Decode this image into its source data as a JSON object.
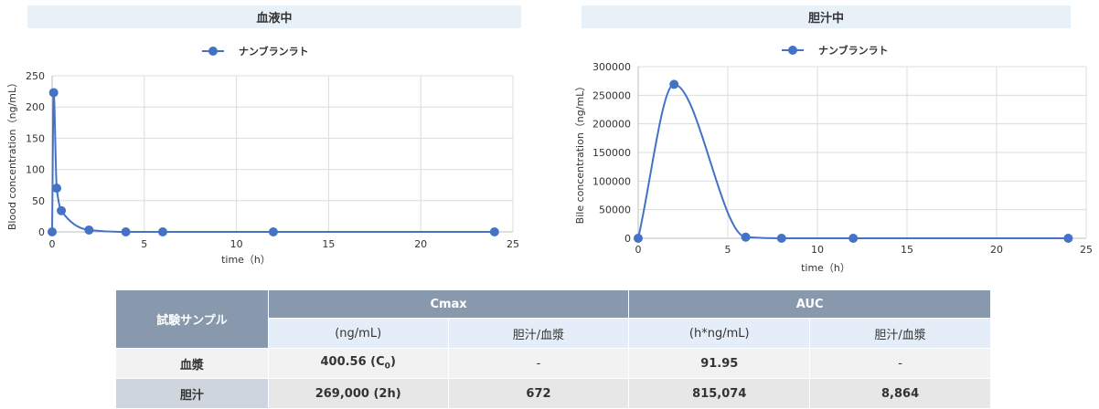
{
  "colors": {
    "series": "#4472c4",
    "panel_title_bg": "#e8f0f8",
    "table_header_bg": "#8898ad"
  },
  "chart_data": [
    {
      "type": "line",
      "title": "血液中",
      "xlabel": "time（h）",
      "ylabel": "Blood concentration（ng/mL）",
      "xlim": [
        0,
        25
      ],
      "ylim": [
        0,
        250
      ],
      "xticks": [
        0,
        5,
        10,
        15,
        20,
        25
      ],
      "yticks": [
        0,
        50,
        100,
        150,
        200,
        250
      ],
      "legend": "top-center",
      "grid": true,
      "series": [
        {
          "name": "ナンブランラト",
          "x": [
            0,
            0.083,
            0.25,
            0.5,
            2,
            4,
            6,
            12,
            24
          ],
          "y": [
            0,
            223,
            70,
            34,
            3,
            0,
            0,
            0,
            0
          ]
        }
      ]
    },
    {
      "type": "line",
      "title": "胆汁中",
      "xlabel": "time（h）",
      "ylabel": "Bile concentration（ng/mL）",
      "xlim": [
        0,
        25
      ],
      "ylim": [
        0,
        300000
      ],
      "xticks": [
        0,
        5,
        10,
        15,
        20,
        25
      ],
      "yticks": [
        0,
        50000,
        100000,
        150000,
        200000,
        250000,
        300000
      ],
      "legend": "top-center",
      "grid": true,
      "series": [
        {
          "name": "ナンブランラト",
          "x": [
            0,
            2,
            6,
            8,
            12,
            24
          ],
          "y": [
            0,
            269000,
            2000,
            0,
            0,
            0
          ]
        }
      ]
    }
  ],
  "table": {
    "corner_label": "試験サンプル",
    "groups": [
      "Cmax",
      "AUC"
    ],
    "subheaders": [
      "(ng/mL)",
      "胆汁/血漿",
      "(h*ng/mL)",
      "胆汁/血漿"
    ],
    "rows": [
      {
        "label": "血漿",
        "cmax_value": "400.56 (C",
        "cmax_sub": "0",
        "cmax_close": ")",
        "cmax_ratio": "-",
        "auc_value": "91.95",
        "auc_ratio": "-"
      },
      {
        "label": "胆汁",
        "cmax_value": "269,000 (2h)",
        "cmax_ratio": "672",
        "auc_value": "815,074",
        "auc_ratio": "8,864"
      }
    ]
  }
}
